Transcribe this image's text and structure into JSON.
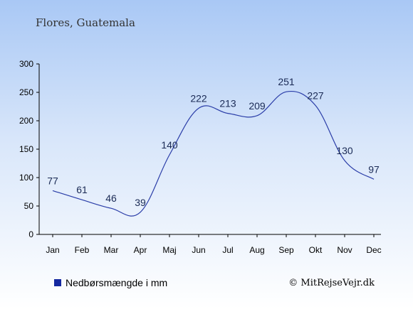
{
  "chart_data": {
    "type": "line",
    "title": "Flores, Guatemala",
    "categories": [
      "Jan",
      "Feb",
      "Mar",
      "Apr",
      "Maj",
      "Jun",
      "Jul",
      "Aug",
      "Sep",
      "Okt",
      "Nov",
      "Dec"
    ],
    "series": [
      {
        "name": "Nedbørsmængde i mm",
        "values": [
          77,
          61,
          46,
          39,
          140,
          222,
          213,
          209,
          251,
          227,
          130,
          97
        ]
      }
    ],
    "yticks": [
      "0",
      "50",
      "100",
      "150",
      "200",
      "250",
      "300"
    ],
    "ylim": [
      0,
      300
    ],
    "grid": false,
    "legend_position": "bottom-left",
    "line_color": "#2a3da8",
    "legend_color": "#1428a0"
  },
  "credit": "© MitRejseVejr.dk"
}
